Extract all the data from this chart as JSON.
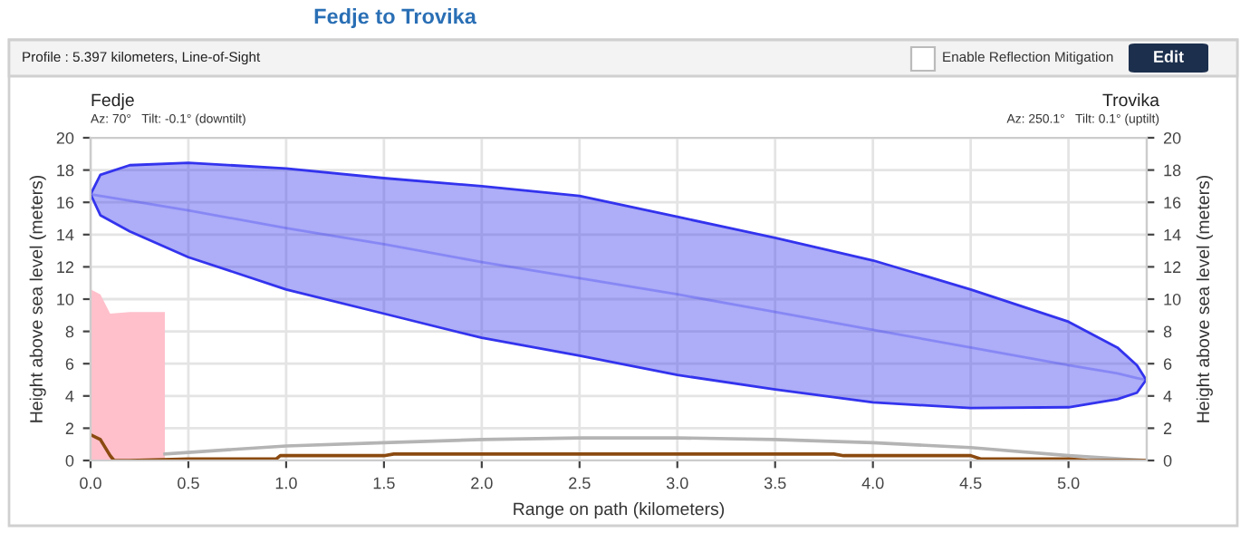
{
  "chart_data": {
    "type": "line",
    "title": "Fedje to Trovika",
    "annotations": [
      "Profile : 5.397 kilometers, Line-of-Sight",
      "Enable Reflection Mitigation",
      "Edit",
      "Fedje",
      "Az: 70°   Tilt: -0.1° (downtilt)",
      "Trovika",
      "Az: 250.1°   Tilt: 0.1° (uptilt)"
    ],
    "xlabel": "Range on path (kilometers)",
    "ylabel": "Height above sea level (meters)",
    "y2label": "Height above sea level (meters)",
    "series": [
      {
        "type": "area",
        "color": "#ffc0cb",
        "x": [
          0,
          0.05,
          0.1,
          0.2,
          0.3,
          0.38
        ],
        "values": [
          10.6,
          10.3,
          9.1,
          9.2,
          9.2,
          9.2
        ]
      },
      {
        "color": "#b4b4b4",
        "x": [
          0.38,
          0.5,
          1.0,
          1.5,
          2.0,
          2.5,
          3.0,
          3.5,
          4.0,
          4.5,
          5.0,
          5.397
        ],
        "values": [
          0.4,
          0.5,
          0.9,
          1.1,
          1.3,
          1.4,
          1.4,
          1.3,
          1.1,
          0.8,
          0.3,
          0
        ]
      },
      {
        "color": "#8b4a10",
        "x": [
          0,
          0.05,
          0.1,
          0.12,
          0.2,
          0.5,
          0.95,
          0.97,
          1.5,
          1.55,
          3.8,
          3.85,
          4.5,
          4.55,
          5.0,
          5.1,
          5.397
        ],
        "values": [
          1.6,
          1.3,
          0.3,
          0,
          0,
          0.1,
          0.1,
          0.3,
          0.3,
          0.4,
          0.4,
          0.3,
          0.3,
          0.1,
          0.1,
          0,
          0
        ]
      },
      {
        "color": "#3333ee",
        "x": [
          0,
          0.05,
          0.2,
          0.5,
          1.0,
          1.5,
          2.0,
          2.5,
          3.0,
          3.5,
          4.0,
          4.5,
          5.0,
          5.25,
          5.35,
          5.397
        ],
        "values": [
          16.5,
          16.4,
          16.1,
          15.5,
          14.4,
          13.4,
          12.3,
          11.3,
          10.3,
          9.2,
          8.1,
          7.0,
          5.9,
          5.4,
          5.1,
          5.0
        ],
        "upper": [
          16.5,
          17.7,
          18.3,
          18.45,
          18.1,
          17.5,
          17.0,
          16.4,
          15.1,
          13.8,
          12.4,
          10.6,
          8.6,
          7.0,
          5.9,
          5.0
        ],
        "lower": [
          16.5,
          15.2,
          14.2,
          12.6,
          10.6,
          9.1,
          7.6,
          6.5,
          5.3,
          4.4,
          3.6,
          3.25,
          3.3,
          3.8,
          4.2,
          5.0
        ]
      }
    ],
    "xlim": [
      0,
      5.4
    ],
    "xticks": [
      {
        "value": 0,
        "label": "0.0"
      },
      {
        "value": 0.5,
        "label": "0.5"
      },
      {
        "value": 1,
        "label": "1.0"
      },
      {
        "value": 1.5,
        "label": "1.5"
      },
      {
        "value": 2,
        "label": "2.0"
      },
      {
        "value": 2.5,
        "label": "2.5"
      },
      {
        "value": 3,
        "label": "3.0"
      },
      {
        "value": 3.5,
        "label": "3.5"
      },
      {
        "value": 4,
        "label": "4.0"
      },
      {
        "value": 4.5,
        "label": "4.5"
      },
      {
        "value": 5,
        "label": "5.0"
      }
    ],
    "ylim": [
      0,
      20
    ],
    "yticks": [
      0,
      2,
      4,
      6,
      8,
      10,
      12,
      14,
      16,
      18,
      20
    ],
    "y2lim": [
      0,
      20
    ],
    "y2ticks": [
      0,
      2,
      4,
      6,
      8,
      10,
      12,
      14,
      16,
      18,
      20
    ],
    "grid": true,
    "legend": false
  }
}
